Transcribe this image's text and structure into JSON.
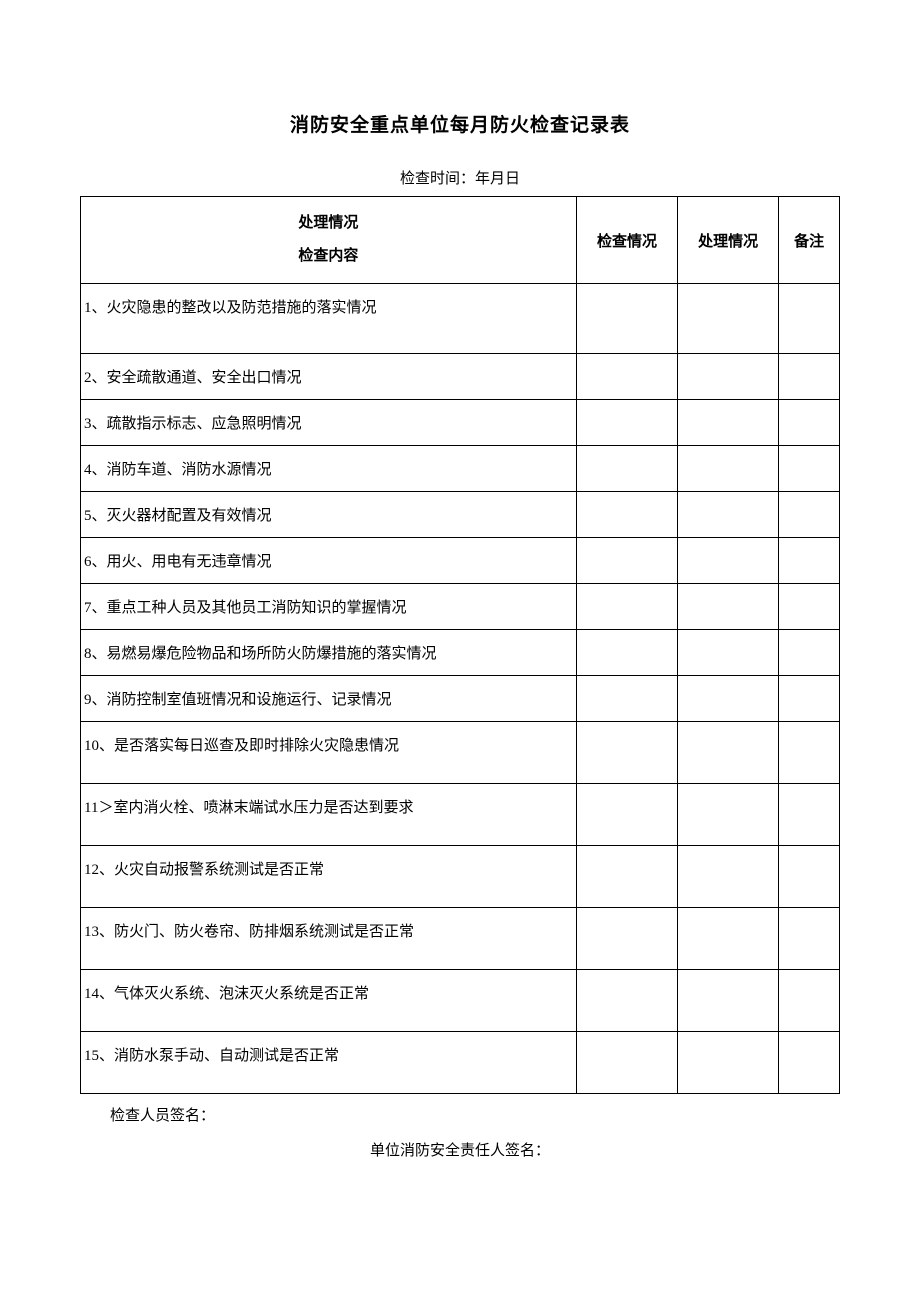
{
  "title": "消防安全重点单位每月防火检查记录表",
  "subtitle": "检查时间：年月日",
  "header": {
    "main_line1": "处理情况",
    "main_line2": "检查内容",
    "col_check": "检查情况",
    "col_handle": "处理情况",
    "col_note": "备注"
  },
  "items": [
    {
      "text": "1、火灾隐患的整改以及防范措施的落实情况",
      "height": "tall"
    },
    {
      "text": "2、安全疏散通道、安全出口情况",
      "height": "short"
    },
    {
      "text": "3、疏散指示标志、应急照明情况",
      "height": "short"
    },
    {
      "text": "4、消防车道、消防水源情况",
      "height": "short"
    },
    {
      "text": "5、灭火器材配置及有效情况",
      "height": "short"
    },
    {
      "text": "6、用火、用电有无违章情况",
      "height": "short"
    },
    {
      "text": "7、重点工种人员及其他员工消防知识的掌握情况",
      "height": "short"
    },
    {
      "text": "8、易燃易爆危险物品和场所防火防爆措施的落实情况",
      "height": "short"
    },
    {
      "text": "9、消防控制室值班情况和设施运行、记录情况",
      "height": "short"
    },
    {
      "text": "10、是否落实每日巡查及即时排除火灾隐患情况",
      "height": "med"
    },
    {
      "text": "11＞室内消火栓、喷淋末端试水压力是否达到要求",
      "height": "med"
    },
    {
      "text": "12、火灾自动报警系统测试是否正常",
      "height": "med"
    },
    {
      "text": "13、防火门、防火卷帘、防排烟系统测试是否正常",
      "height": "med"
    },
    {
      "text": "14、气体灭火系统、泡沫灭火系统是否正常",
      "height": "med"
    },
    {
      "text": "15、消防水泵手动、自动测试是否正常",
      "height": "med"
    }
  ],
  "footer1": "检查人员签名：",
  "footer2": "单位消防安全责任人签名："
}
